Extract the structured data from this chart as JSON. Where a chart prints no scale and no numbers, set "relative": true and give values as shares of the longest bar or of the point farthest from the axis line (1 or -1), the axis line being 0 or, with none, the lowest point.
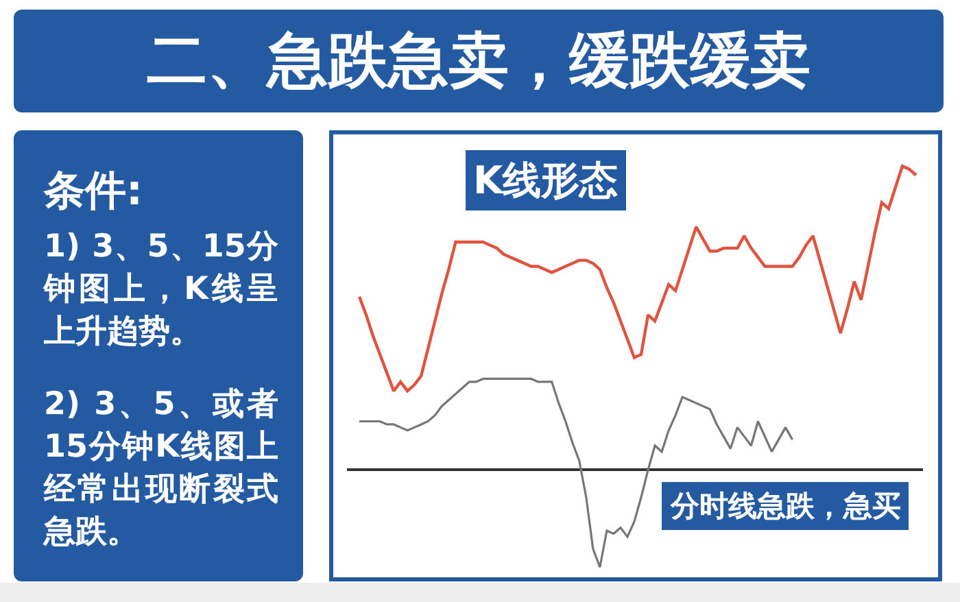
{
  "chart_data": {
    "type": "line",
    "title": "二、急跌急卖，缓跌缓卖",
    "annotations": [
      "条件:",
      "1) 3、5、15分钟图上，K线呈上升趋势。",
      "2) 3、5、或者15分钟K线图上经常出现断裂式急跌。"
    ],
    "relative": true,
    "categories": [
      null,
      null,
      null,
      null,
      null,
      null,
      null,
      null,
      null,
      null,
      null,
      null,
      null,
      null,
      null,
      null,
      null,
      null,
      null,
      null,
      null,
      null,
      null,
      null,
      null,
      null,
      null,
      null,
      null,
      null,
      null,
      null,
      null,
      null,
      null,
      null,
      null,
      null,
      null,
      null,
      null,
      null,
      null,
      null,
      null,
      null,
      null,
      null,
      null,
      null,
      null,
      null,
      null,
      null,
      null,
      null,
      null,
      null,
      null,
      null,
      null,
      null,
      null,
      null,
      null,
      null,
      null,
      null,
      null,
      null,
      null,
      null,
      null,
      null,
      null,
      null,
      null,
      null,
      null,
      null,
      null,
      null
    ],
    "series": [
      {
        "name": "K线形态",
        "color": "#e0533f",
        "values": [
          0.57,
          0.51,
          0.44,
          0.38,
          0.32,
          0.26,
          0.29,
          0.26,
          0.28,
          0.31,
          0.4,
          0.49,
          0.58,
          0.66,
          0.75,
          0.75,
          0.75,
          0.75,
          0.75,
          0.74,
          0.73,
          0.71,
          0.7,
          0.69,
          0.68,
          0.67,
          0.67,
          0.66,
          0.65,
          0.66,
          0.67,
          0.68,
          0.69,
          0.69,
          0.68,
          0.66,
          0.6,
          0.55,
          0.49,
          0.43,
          0.37,
          0.38,
          0.51,
          0.49,
          0.55,
          0.61,
          0.59,
          0.66,
          0.73,
          0.8,
          0.76,
          0.72,
          0.72,
          0.73,
          0.73,
          0.73,
          0.77,
          0.73,
          0.7,
          0.67,
          0.67,
          0.67,
          0.67,
          0.67,
          0.7,
          0.74,
          0.77,
          0.69,
          0.61,
          0.53,
          0.45,
          0.53,
          0.62,
          0.56,
          0.67,
          0.78,
          0.88,
          0.86,
          0.93,
          1.0,
          0.99,
          0.97
        ]
      },
      {
        "name": "分时线急跌，急买",
        "color": "#767676",
        "values": [
          0.16,
          0.16,
          0.16,
          0.16,
          0.15,
          0.15,
          0.14,
          0.13,
          0.14,
          0.15,
          0.16,
          0.18,
          0.21,
          0.23,
          0.25,
          0.27,
          0.29,
          0.29,
          0.3,
          0.3,
          0.3,
          0.3,
          0.3,
          0.3,
          0.3,
          0.3,
          0.29,
          0.29,
          0.29,
          0.22,
          0.16,
          0.09,
          0.03,
          -0.09,
          -0.26,
          -0.32,
          -0.2,
          -0.21,
          -0.19,
          -0.22,
          -0.17,
          -0.09,
          0.0,
          0.08,
          0.06,
          0.13,
          0.18,
          0.24,
          0.23,
          0.22,
          0.21,
          0.2,
          0.15,
          0.11,
          0.07,
          0.14,
          0.11,
          0.08,
          0.16,
          0.11,
          0.06,
          0.1,
          0.14,
          0.1,
          null,
          null,
          null,
          null,
          null,
          null,
          null,
          null,
          null,
          null,
          null,
          null,
          null,
          null,
          null,
          null,
          null,
          null
        ]
      }
    ]
  }
}
